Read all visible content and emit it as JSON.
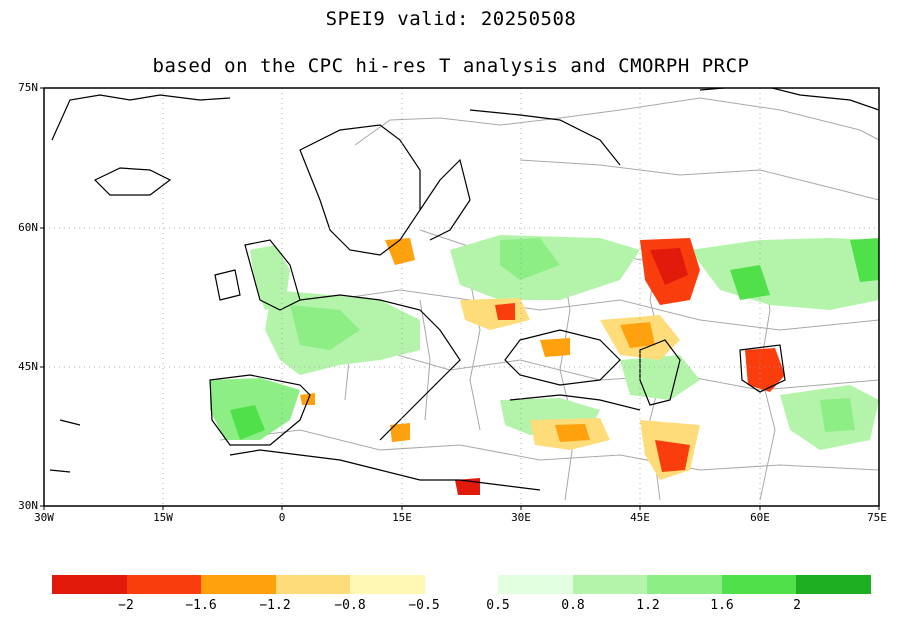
{
  "map": {
    "title": "SPEI9  valid: 20250508",
    "subtitle": "based on the CPC hi-res T analysis and CMORPH PRCP",
    "lat_labels": [
      "75N",
      "60N",
      "45N",
      "30N"
    ],
    "lon_labels": [
      "30W",
      "15W",
      "0",
      "15E",
      "30E",
      "45E",
      "60E",
      "75E"
    ],
    "extent": {
      "lon_min": -30,
      "lon_max": 75,
      "lat_min": 30,
      "lat_max": 75
    }
  },
  "colorbar": {
    "labels": [
      "−2",
      "−1.6",
      "−1.2",
      "−0.8",
      "−0.5",
      "0.5",
      "0.8",
      "1.2",
      "1.6",
      "2"
    ],
    "dry_colors": [
      "#e11a0c",
      "#fa3d0c",
      "#ffa10c",
      "#ffdc7a",
      "#fff7b4"
    ],
    "wet_colors": [
      "#e2ffe0",
      "#b4f4aa",
      "#8cee84",
      "#50e04a",
      "#1eae22"
    ]
  },
  "colors": {
    "land_gray": "#a8a8a8",
    "coast": "#000000"
  }
}
